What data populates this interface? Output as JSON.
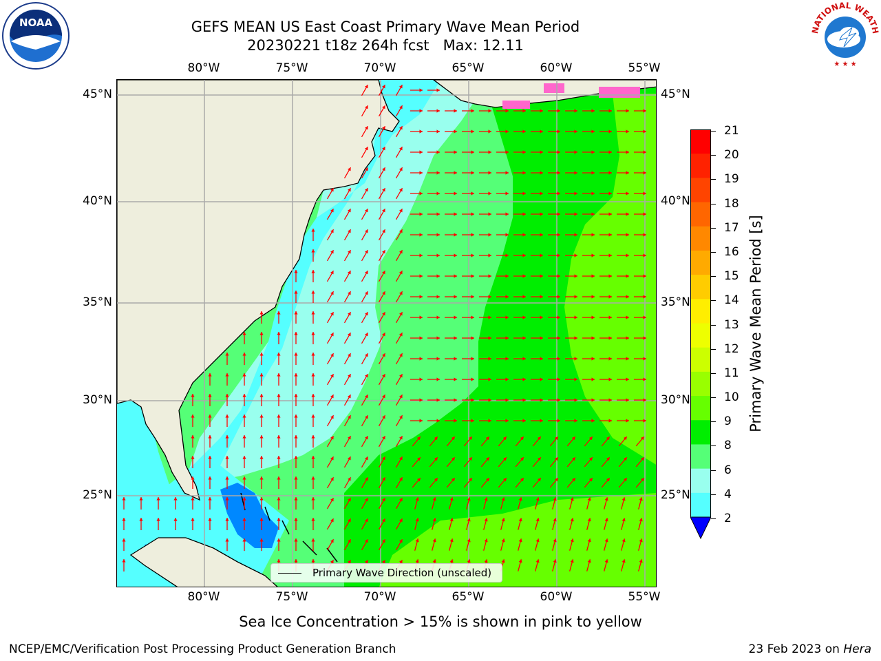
{
  "title": "GEFS MEAN US East Coast Primary Wave Mean Period",
  "subtitle": "20230221 t18z 264h fcst   Max: 12.11",
  "longitude_labels": [
    "80°W",
    "75°W",
    "70°W",
    "65°W",
    "60°W",
    "55°W"
  ],
  "latitude_labels": [
    "45°N",
    "40°N",
    "35°N",
    "30°N",
    "25°N"
  ],
  "legend": {
    "label": "Primary Wave Direction (unscaled)"
  },
  "colorbar": {
    "title": "Primary Wave Mean Period [s]",
    "tick_labels": [
      "21",
      "20",
      "19",
      "18",
      "17",
      "16",
      "15",
      "14",
      "13",
      "12",
      "11",
      "10",
      "9",
      "8",
      "6",
      "4",
      "2"
    ],
    "colors": [
      "#ff0000",
      "#ff2200",
      "#ff4400",
      "#ff6600",
      "#ff8800",
      "#ffaa00",
      "#ffcc00",
      "#ffee00",
      "#eeff00",
      "#ccff00",
      "#99ff00",
      "#66ff00",
      "#00ee00",
      "#55ff77",
      "#99ffee",
      "#55ffff",
      "#00ffff",
      "#0088ff",
      "#0000ff"
    ]
  },
  "sea_ice_note": "Sea Ice Concentration > 15% is shown in pink to yellow",
  "footer": {
    "producer": "NCEP/EMC/Verification Post Processing Product Generation Branch",
    "date_prefix": "23 Feb 2023 on ",
    "machine": "Hera"
  },
  "logos": {
    "left": "NOAA",
    "right": "NATIONAL WEATHER SERVICE"
  },
  "colors": {
    "land": "#eeeedd",
    "arrows": "#ff0000",
    "grid": "#aaaaaa"
  }
}
